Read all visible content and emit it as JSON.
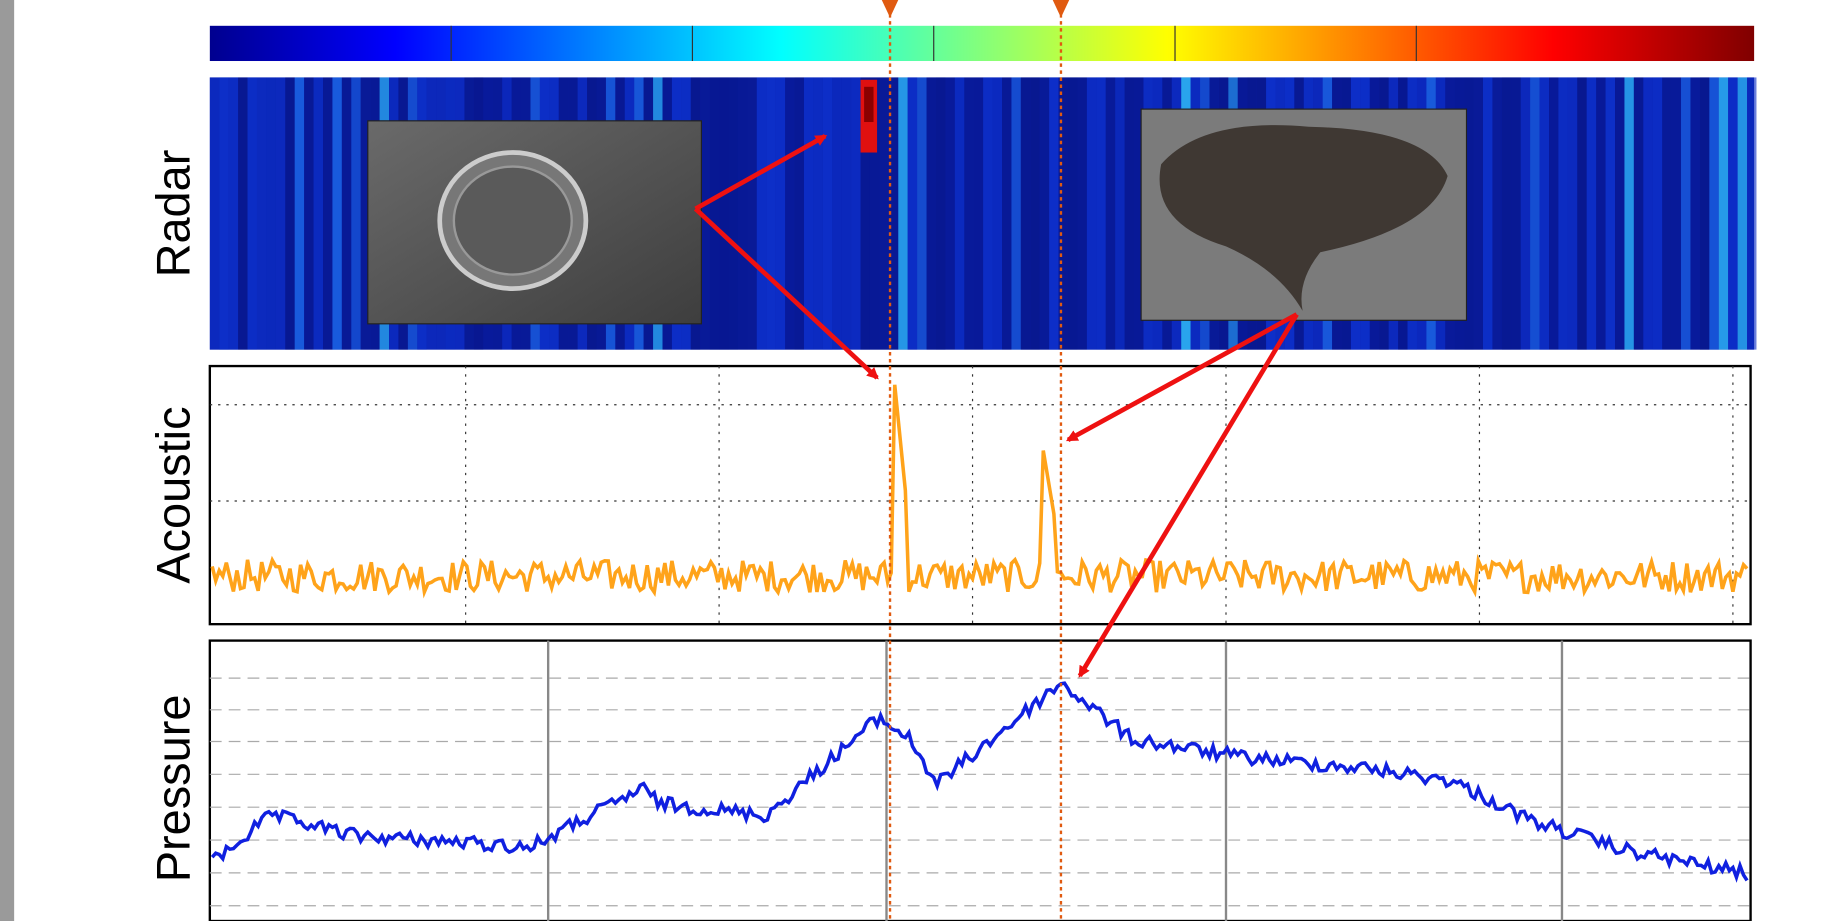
{
  "panels": [
    {
      "label": "Radar"
    },
    {
      "label": "Acoustic"
    },
    {
      "label": "Pressure"
    }
  ]
}
